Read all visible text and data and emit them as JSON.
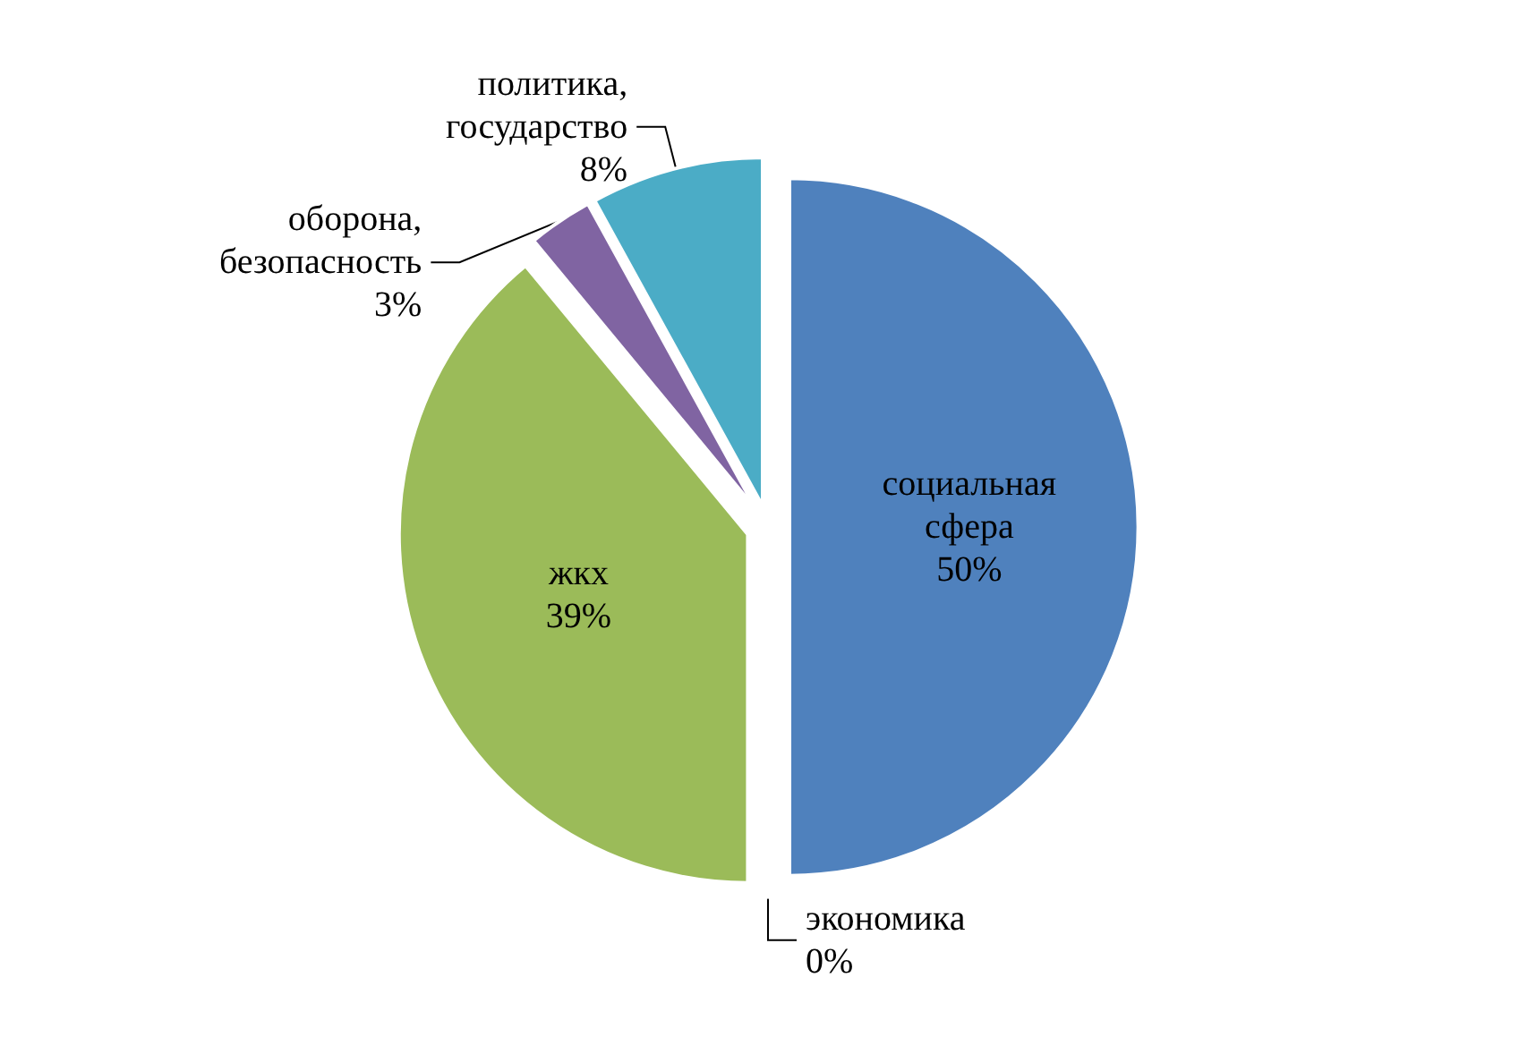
{
  "chart_data": {
    "type": "pie",
    "categories": [
      "социальная сфера",
      "экономика",
      "жкх",
      "оборона, безопасность",
      "политика, государство"
    ],
    "values": [
      50,
      0,
      39,
      3,
      8
    ],
    "colors": [
      "#4f81bd",
      "#c0504d",
      "#9bbb59",
      "#8064a2",
      "#4bacc6"
    ],
    "value_labels": [
      "50%",
      "0%",
      "39%",
      "3%",
      "8%"
    ]
  }
}
